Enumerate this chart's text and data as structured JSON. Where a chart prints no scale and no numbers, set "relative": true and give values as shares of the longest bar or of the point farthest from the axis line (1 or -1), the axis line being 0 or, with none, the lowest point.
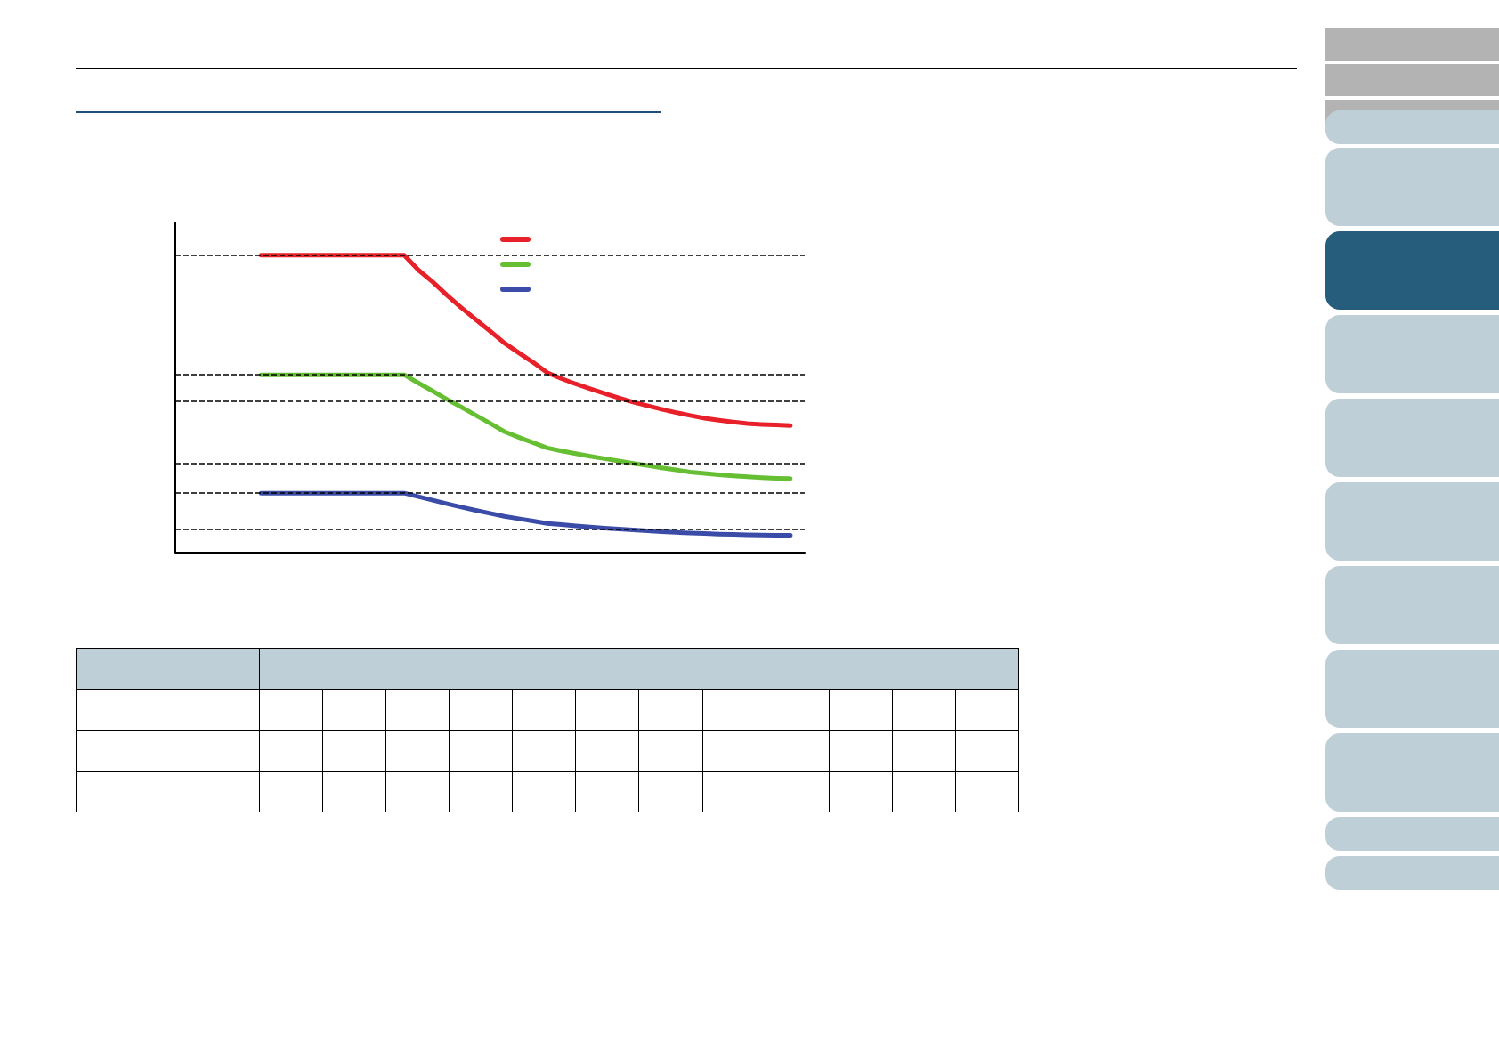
{
  "chart_data": {
    "type": "line",
    "relative": true,
    "grid": false,
    "marker": "none",
    "line_style": "solid",
    "categories": [
      null,
      null,
      null,
      null,
      null,
      null,
      null,
      null,
      null,
      null,
      null,
      null,
      null,
      null,
      null,
      null,
      null,
      null,
      null,
      null,
      null,
      null,
      null,
      null,
      null,
      null,
      null,
      null,
      null,
      null,
      null,
      null,
      null,
      null,
      null,
      null,
      null,
      null,
      null,
      null,
      null,
      null,
      null,
      null,
      null
    ],
    "series": [
      {
        "color": "#e8202a",
        "values": [
          null,
          null,
          null,
          null,
          null,
          null,
          1,
          1,
          1,
          1,
          1,
          1,
          1,
          1,
          1,
          1,
          1,
          0.95,
          0.91,
          0.865,
          0.823,
          0.784,
          0.745,
          0.705,
          0.672,
          0.64,
          0.605,
          0.585,
          0.567,
          0.551,
          0.535,
          0.52,
          0.506,
          0.494,
          0.482,
          0.471,
          0.461,
          0.452,
          0.445,
          0.439,
          0.434,
          0.431,
          0.429,
          0.427,
          null
        ]
      },
      {
        "color": "#66bf33",
        "values": [
          null,
          null,
          null,
          null,
          null,
          null,
          0.598,
          0.598,
          0.598,
          0.598,
          0.598,
          0.598,
          0.598,
          0.598,
          0.598,
          0.598,
          0.598,
          0.57,
          0.543,
          0.515,
          0.489,
          0.462,
          0.435,
          0.407,
          0.388,
          0.37,
          0.352,
          0.342,
          0.333,
          0.324,
          0.316,
          0.308,
          0.3,
          0.293,
          0.285,
          0.278,
          0.271,
          0.266,
          0.262,
          0.258,
          0.255,
          0.252,
          0.25,
          0.249,
          null
        ]
      },
      {
        "color": "#3a4ca8",
        "values": [
          null,
          null,
          null,
          null,
          null,
          null,
          0.2,
          0.2,
          0.2,
          0.2,
          0.2,
          0.2,
          0.2,
          0.2,
          0.2,
          0.2,
          0.2,
          0.188,
          0.176,
          0.164,
          0.153,
          0.142,
          0.132,
          0.122,
          0.114,
          0.106,
          0.098,
          0.094,
          0.09,
          0.086,
          0.082,
          0.079,
          0.076,
          0.073,
          0.07,
          0.068,
          0.066,
          0.064,
          0.062,
          0.061,
          0.06,
          0.059,
          0.058,
          0.058,
          null
        ]
      }
    ],
    "ref_lines": [
      {
        "axis": "y",
        "value": 1,
        "line_style": "dashed"
      },
      {
        "axis": "y",
        "value": 0.598,
        "line_style": "dashed"
      },
      {
        "axis": "y",
        "value": 0.506,
        "line_style": "dashed"
      },
      {
        "axis": "y",
        "value": 0.301,
        "line_style": "dashed"
      },
      {
        "axis": "y",
        "value": 0.2,
        "line_style": "dashed"
      },
      {
        "axis": "y",
        "value": 0.076,
        "line_style": "dashed"
      }
    ]
  }
}
